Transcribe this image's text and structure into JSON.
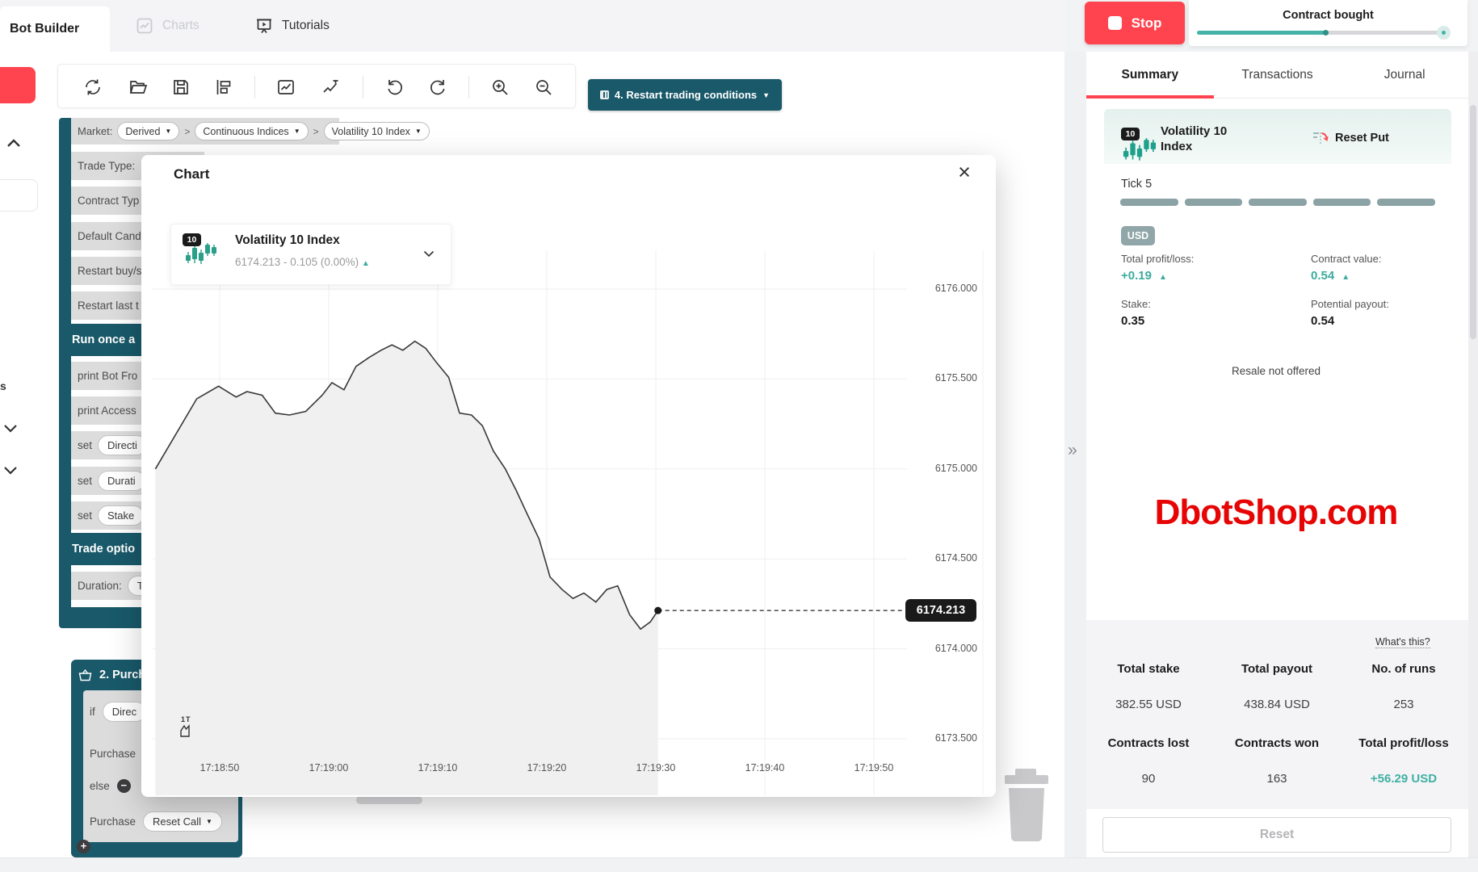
{
  "top_nav": {
    "tabs": [
      {
        "label": "Bot Builder",
        "active": true
      },
      {
        "label": "Charts",
        "disabled": true
      },
      {
        "label": "Tutorials",
        "disabled": false
      }
    ]
  },
  "toolbar": {
    "buttons": [
      "refresh",
      "open",
      "save",
      "rearrange",
      "chart-view",
      "indicator-chart",
      "undo",
      "redo",
      "zoom-in",
      "zoom-out"
    ]
  },
  "workspace": {
    "restart_button_label": "4. Restart trading conditions",
    "market_row": {
      "label": "Market:",
      "pills": [
        "Derived",
        "Continuous Indices",
        "Volatility 10 Index"
      ]
    },
    "trade_block_rows": [
      {
        "label": "Trade Type:"
      },
      {
        "label": "Contract Typ"
      },
      {
        "label": "Default Cand"
      },
      {
        "label": "Restart buy/s"
      },
      {
        "label": "Restart last t"
      },
      {
        "label": "Run once a",
        "header": true
      },
      {
        "label": "print Bot Fro"
      },
      {
        "label": "print  Access"
      },
      {
        "label": "set",
        "pill": "Directi"
      },
      {
        "label": "set",
        "pill": "Durati"
      },
      {
        "label": "set",
        "pill": "Stake"
      },
      {
        "label": "Trade optio",
        "header": true
      },
      {
        "label": "Duration:",
        "pill": "T"
      }
    ],
    "purchase_block": {
      "title": "2. Purcha",
      "rows": [
        {
          "label": "if",
          "pill": "Direc"
        },
        {
          "label": "Purchase"
        },
        {
          "label": "else",
          "minus": true
        },
        {
          "label": "Purchase",
          "pill": "Reset Call",
          "dropdown": true
        }
      ]
    },
    "toolbox_fragment_text": "s"
  },
  "chart_modal": {
    "title": "Chart",
    "close_glyph": "×",
    "symbol": {
      "badge": "10",
      "name": "Volatility 10 Index",
      "quote": "6174.213 - 0.105 (0.00%)",
      "trend_glyph": "▲"
    },
    "current_price_tag": "6174.213",
    "chart_type_label": "1T"
  },
  "chart_data": {
    "type": "area",
    "title": "Volatility 10 Index tick chart",
    "x_unit": "seconds after 17:18:00",
    "x": [
      44.1,
      47.9,
      49.9,
      51.5,
      52.5,
      53.9,
      55.1,
      56.4,
      57.9,
      59.4,
      60.3,
      61.4,
      62.5,
      63.7,
      64.8,
      65.8,
      66.8,
      67.9,
      68.9,
      69.9,
      71.0,
      72.0,
      73.1,
      74.1,
      75.1,
      76.2,
      77.2,
      78.2,
      79.3,
      80.3,
      81.4,
      82.4,
      83.4,
      84.5,
      85.5,
      86.5,
      87.6,
      88.6,
      89.5,
      90.2
    ],
    "values": [
      6175.0,
      6175.39,
      6175.46,
      6175.4,
      6175.43,
      6175.41,
      6175.31,
      6175.3,
      6175.32,
      6175.41,
      6175.48,
      6175.44,
      6175.57,
      6175.62,
      6175.66,
      6175.69,
      6175.66,
      6175.71,
      6175.67,
      6175.59,
      6175.51,
      6175.31,
      6175.3,
      6175.24,
      6175.1,
      6175.0,
      6174.88,
      6174.75,
      6174.61,
      6174.4,
      6174.33,
      6174.28,
      6174.31,
      6174.26,
      6174.33,
      6174.35,
      6174.19,
      6174.11,
      6174.15,
      6174.213
    ],
    "x_ticks": [
      {
        "t": 50,
        "label": "17:18:50"
      },
      {
        "t": 60,
        "label": "17:19:00"
      },
      {
        "t": 70,
        "label": "17:19:10"
      },
      {
        "t": 80,
        "label": "17:19:20"
      },
      {
        "t": 90,
        "label": "17:19:30"
      },
      {
        "t": 100,
        "label": "17:19:40"
      },
      {
        "t": 110,
        "label": "17:19:50"
      }
    ],
    "y_ticks": [
      {
        "v": 6176.0,
        "label": "6176.000"
      },
      {
        "v": 6175.5,
        "label": "6175.500"
      },
      {
        "v": 6175.0,
        "label": "6175.000"
      },
      {
        "v": 6174.5,
        "label": "6174.500"
      },
      {
        "v": 6174.0,
        "label": "6174.000"
      },
      {
        "v": 6173.5,
        "label": "6173.500"
      }
    ],
    "ylim": [
      6173.35,
      6176.25
    ],
    "grid": true,
    "legend_position": "none",
    "current_spot": 6174.213,
    "line_color": "#383838",
    "fill_color": "#f0f0f1"
  },
  "run_panel": {
    "stop_label": "Stop",
    "notification": {
      "title": "Contract bought",
      "progress_pct": 52
    },
    "tabs": [
      {
        "label": "Summary",
        "active": true
      },
      {
        "label": "Transactions"
      },
      {
        "label": "Journal"
      }
    ],
    "card": {
      "badge": "10",
      "symbol": "Volatility 10 Index",
      "contract_type": "Reset Put",
      "tick_label": "Tick 5",
      "tick_segments": 5,
      "currency": "USD",
      "fields": [
        {
          "label": "Total profit/loss:",
          "value": "+0.19",
          "trend": "up",
          "accent": true
        },
        {
          "label": "Contract value:",
          "value": "0.54",
          "trend": "up",
          "accent": true
        },
        {
          "label": "Stake:",
          "value": "0.35"
        },
        {
          "label": "Potential payout:",
          "value": "0.54"
        }
      ],
      "note": "Resale not offered"
    },
    "watermark": "DbotShop.com",
    "stats": {
      "whats_this": "What's this?",
      "rows": [
        [
          {
            "label": "Total stake",
            "value": "382.55 USD"
          },
          {
            "label": "Total payout",
            "value": "438.84 USD"
          },
          {
            "label": "No. of runs",
            "value": "253"
          }
        ],
        [
          {
            "label": "Contracts lost",
            "value": "90"
          },
          {
            "label": "Contracts won",
            "value": "163"
          },
          {
            "label": "Total profit/loss",
            "value": "+56.29 USD",
            "accent": true
          }
        ]
      ]
    },
    "reset_label": "Reset"
  },
  "colors": {
    "accent_red": "#ff444f",
    "accent_teal": "#3cab9e",
    "block_teal": "#19596a",
    "watermark_red": "#e60404",
    "tick_segment": "#8ca3a5"
  }
}
